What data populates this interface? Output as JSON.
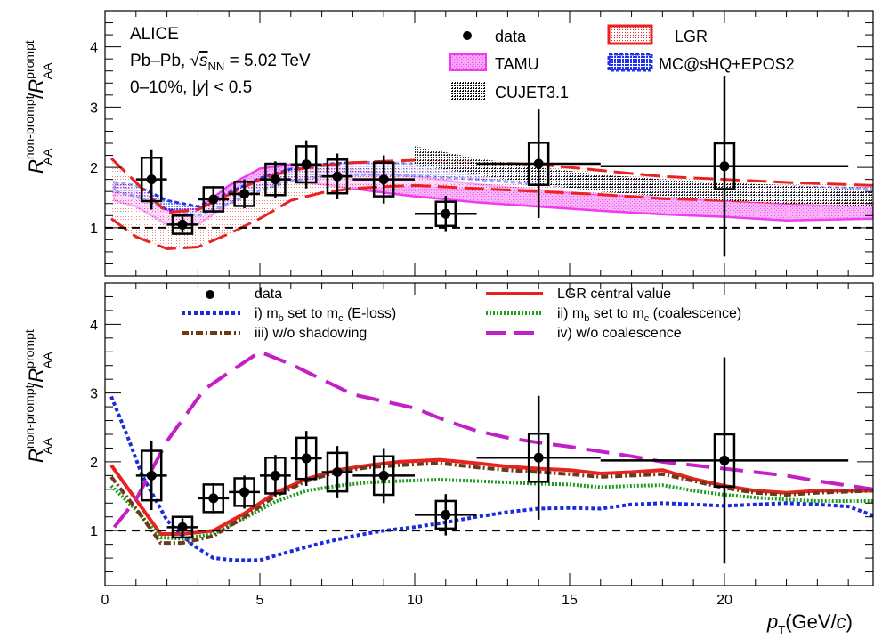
{
  "figure": {
    "experiment": "ALICE",
    "system_prefix": "Pb–Pb, ",
    "sqrt_symbol": "√",
    "s": "s",
    "nn": "NN",
    "energy_value": " = 5.02 TeV",
    "centrality_prefix": "0–10%, |",
    "y": "y",
    "centrality_suffix": "| < 0.5",
    "xlabel_p": "p",
    "xlabel_T": "T",
    "xlabel_rest": "(GeV/",
    "xlabel_c": "c",
    "xlabel_close": ")",
    "ylabel_R": "R",
    "ylabel_sup": "non-prompt",
    "ylabel_sub": "AA",
    "ylabel_slash": "/",
    "ylabel_R2": "R",
    "ylabel_sup2": "prompt",
    "ylabel_sub2": "AA"
  },
  "colors": {
    "data": "#000000",
    "lgr": "#e8231f",
    "tamu": "#f03cf0",
    "mcsHQ": "#2233ee",
    "cujet": "#000000",
    "mb_eloss": "#1a2bdd",
    "mb_coal": "#1c9c1c",
    "no_shadowing": "#6b3a1a",
    "no_coal": "#c21fc6"
  },
  "chart_data": [
    {
      "type": "scatter",
      "panel": "top",
      "xlim": [
        0,
        24.8
      ],
      "ylim": [
        0.2,
        4.6
      ],
      "xticks": [
        0,
        5,
        10,
        15,
        20
      ],
      "yticks": [
        1,
        2,
        3,
        4
      ],
      "reference_line": 1,
      "legend": {
        "data": "data",
        "lgr": "LGR",
        "tamu": "TAMU",
        "mcsHQ": "MC@sHQ+EPOS2",
        "cujet": "CUJET3.1"
      },
      "data_points": [
        {
          "x": 1.5,
          "xerr": 0.5,
          "y": 1.8,
          "stat": 0.5,
          "syst": 0.36
        },
        {
          "x": 2.5,
          "xerr": 0.5,
          "y": 1.05,
          "stat": 0.13,
          "syst": 0.15
        },
        {
          "x": 3.5,
          "xerr": 0.5,
          "y": 1.47,
          "stat": 0.22,
          "syst": 0.2
        },
        {
          "x": 4.5,
          "xerr": 0.5,
          "y": 1.56,
          "stat": 0.24,
          "syst": 0.2
        },
        {
          "x": 5.5,
          "xerr": 0.5,
          "y": 1.8,
          "stat": 0.3,
          "syst": 0.26
        },
        {
          "x": 6.5,
          "xerr": 0.5,
          "y": 2.05,
          "stat": 0.4,
          "syst": 0.3
        },
        {
          "x": 7.5,
          "xerr": 0.5,
          "y": 1.85,
          "stat": 0.38,
          "syst": 0.28
        },
        {
          "x": 9.0,
          "xerr": 1.0,
          "y": 1.8,
          "stat": 0.4,
          "syst": 0.28
        },
        {
          "x": 11.0,
          "xerr": 1.0,
          "y": 1.23,
          "stat": 0.3,
          "syst": 0.2
        },
        {
          "x": 14.0,
          "xerr": 2.0,
          "y": 2.06,
          "stat": 0.9,
          "syst": 0.35
        },
        {
          "x": 20.0,
          "xerr": 4.0,
          "y": 2.02,
          "stat": 1.5,
          "syst": 0.38
        }
      ],
      "lgr_band": {
        "x": [
          0.2,
          1,
          2,
          3,
          4,
          5,
          6,
          7,
          8,
          9,
          10,
          12,
          14,
          16,
          18,
          20,
          22,
          24.8
        ],
        "upper": [
          2.15,
          1.75,
          1.25,
          1.3,
          1.55,
          1.8,
          1.95,
          2.03,
          2.08,
          2.1,
          2.12,
          2.08,
          2.05,
          1.95,
          1.85,
          1.8,
          1.75,
          1.7
        ],
        "lower": [
          1.15,
          0.85,
          0.65,
          0.68,
          0.9,
          1.15,
          1.45,
          1.58,
          1.65,
          1.68,
          1.7,
          1.65,
          1.6,
          1.55,
          1.48,
          1.45,
          1.42,
          1.4
        ]
      },
      "tamu_band": {
        "x": [
          0.3,
          1,
          2,
          3,
          4,
          5,
          6,
          7,
          8,
          9,
          10,
          12,
          14,
          16,
          18,
          20,
          22,
          24.8
        ],
        "upper": [
          1.75,
          1.6,
          1.3,
          1.3,
          1.7,
          1.98,
          2.05,
          2.02,
          1.95,
          1.9,
          1.85,
          1.72,
          1.62,
          1.55,
          1.5,
          1.45,
          1.4,
          1.38
        ],
        "lower": [
          1.45,
          1.35,
          1.05,
          1.05,
          1.4,
          1.7,
          1.78,
          1.72,
          1.65,
          1.58,
          1.52,
          1.42,
          1.35,
          1.28,
          1.22,
          1.18,
          1.12,
          1.15
        ]
      },
      "mcsHQ_band": {
        "x": [
          0.3,
          1,
          2,
          3,
          4,
          5,
          6,
          7,
          8,
          9,
          10,
          12,
          14,
          16,
          18,
          20,
          22,
          24.8
        ],
        "upper": [
          1.75,
          1.7,
          1.45,
          1.35,
          1.58,
          1.82,
          1.97,
          2.05,
          2.08,
          2.08,
          2.06,
          2.0,
          1.92,
          1.85,
          1.78,
          1.72,
          1.68,
          1.65
        ],
        "lower": [
          1.6,
          1.52,
          1.3,
          1.2,
          1.4,
          1.62,
          1.77,
          1.85,
          1.88,
          1.88,
          1.86,
          1.8,
          1.72,
          1.65,
          1.6,
          1.55,
          1.52,
          1.5
        ]
      },
      "cujet_band": {
        "x": [
          10,
          12,
          14,
          16,
          18,
          20,
          22,
          24.8
        ],
        "upper": [
          2.35,
          2.15,
          2.0,
          1.88,
          1.8,
          1.75,
          1.7,
          1.62
        ],
        "lower": [
          2.05,
          1.88,
          1.72,
          1.6,
          1.52,
          1.45,
          1.4,
          1.35
        ]
      }
    },
    {
      "type": "line",
      "panel": "bottom",
      "xlim": [
        0,
        24.8
      ],
      "ylim": [
        0.2,
        4.6
      ],
      "xticks": [
        0,
        5,
        10,
        15,
        20
      ],
      "yticks": [
        1,
        2,
        3,
        4
      ],
      "reference_line": 1,
      "legend": {
        "data": "data",
        "lgr_central": "LGR central value",
        "mb_eloss_pre": "i) m",
        "mb_eloss_sub": "b",
        "mb_eloss_post": " set to m",
        "mb_eloss_sub2": "c",
        "mb_eloss_tail": " (E-loss)",
        "mb_coal_pre": "ii) m",
        "mb_coal_sub": "b",
        "mb_coal_post": " set to m",
        "mb_coal_sub2": "c",
        "mb_coal_tail": " (coalescence)",
        "no_shadowing": "iii) w/o shadowing",
        "no_coal": "iv) w/o coalescence"
      },
      "series": [
        {
          "key": "lgr",
          "name": "LGR central value",
          "x": [
            0.2,
            1,
            1.8,
            2.5,
            3.5,
            4.5,
            5.5,
            6.5,
            7.5,
            8.5,
            9.5,
            10.8,
            12,
            13,
            14,
            15,
            16,
            17,
            18,
            19,
            20,
            21,
            22,
            23,
            24.8
          ],
          "y": [
            1.95,
            1.45,
            0.95,
            0.95,
            1.0,
            1.25,
            1.55,
            1.75,
            1.88,
            1.95,
            2.0,
            2.03,
            1.98,
            1.93,
            1.9,
            1.88,
            1.83,
            1.85,
            1.88,
            1.75,
            1.65,
            1.58,
            1.55,
            1.58,
            1.58
          ]
        },
        {
          "key": "mb_eloss",
          "name": "i) mb set to mc (E-loss)",
          "x": [
            0.2,
            0.7,
            1.2,
            2,
            2.8,
            3.5,
            4.2,
            5,
            6,
            7,
            8,
            9,
            10,
            11,
            12,
            13,
            14,
            15,
            16,
            17,
            18,
            19,
            20,
            21,
            22,
            23,
            24,
            24.8
          ],
          "y": [
            2.95,
            2.4,
            1.8,
            1.15,
            0.8,
            0.6,
            0.57,
            0.57,
            0.7,
            0.82,
            0.92,
            1.0,
            1.05,
            1.12,
            1.2,
            1.27,
            1.32,
            1.33,
            1.32,
            1.38,
            1.4,
            1.38,
            1.36,
            1.38,
            1.4,
            1.38,
            1.35,
            1.22
          ]
        },
        {
          "key": "mb_coal",
          "name": "ii) mb set to mc (coalescence)",
          "x": [
            0.2,
            1,
            1.8,
            2.5,
            3.5,
            4.5,
            5.5,
            6.5,
            7.5,
            8.5,
            9.5,
            10.8,
            12,
            13,
            14,
            15,
            16,
            17,
            18,
            19,
            20,
            21,
            22,
            23,
            24.8
          ],
          "y": [
            1.65,
            1.3,
            0.9,
            0.88,
            0.95,
            1.18,
            1.42,
            1.58,
            1.65,
            1.7,
            1.72,
            1.74,
            1.72,
            1.7,
            1.68,
            1.67,
            1.63,
            1.65,
            1.66,
            1.58,
            1.52,
            1.48,
            1.45,
            1.43,
            1.43
          ]
        },
        {
          "key": "no_shadowing",
          "name": "iii) w/o shadowing",
          "x": [
            0.2,
            1,
            1.8,
            2.5,
            3.5,
            4.5,
            5.5,
            6.5,
            7.5,
            8.5,
            9.5,
            10.8,
            12,
            13,
            14,
            15,
            16,
            17,
            18,
            19,
            20,
            21,
            22,
            23,
            24.8
          ],
          "y": [
            1.78,
            1.32,
            0.82,
            0.82,
            0.92,
            1.2,
            1.5,
            1.72,
            1.85,
            1.92,
            1.95,
            1.98,
            1.92,
            1.88,
            1.85,
            1.82,
            1.78,
            1.8,
            1.82,
            1.72,
            1.62,
            1.55,
            1.52,
            1.55,
            1.58
          ]
        },
        {
          "key": "no_coal",
          "name": "iv) w/o coalescence",
          "x": [
            0.3,
            1,
            2,
            3.2,
            4,
            5,
            6,
            7,
            8,
            9,
            10,
            11,
            12,
            13,
            14,
            15,
            16,
            17,
            18,
            19,
            20,
            21,
            22,
            23,
            24.8
          ],
          "y": [
            1.05,
            1.45,
            2.3,
            3.05,
            3.3,
            3.6,
            3.42,
            3.2,
            2.98,
            2.88,
            2.78,
            2.6,
            2.45,
            2.35,
            2.28,
            2.22,
            2.15,
            2.08,
            2.0,
            1.95,
            1.9,
            1.85,
            1.8,
            1.72,
            1.6
          ]
        }
      ],
      "data_points": [
        {
          "x": 1.5,
          "xerr": 0.5,
          "y": 1.8,
          "stat": 0.5,
          "syst": 0.36
        },
        {
          "x": 2.5,
          "xerr": 0.5,
          "y": 1.05,
          "stat": 0.13,
          "syst": 0.15
        },
        {
          "x": 3.5,
          "xerr": 0.5,
          "y": 1.47,
          "stat": 0.22,
          "syst": 0.2
        },
        {
          "x": 4.5,
          "xerr": 0.5,
          "y": 1.56,
          "stat": 0.24,
          "syst": 0.2
        },
        {
          "x": 5.5,
          "xerr": 0.5,
          "y": 1.8,
          "stat": 0.3,
          "syst": 0.26
        },
        {
          "x": 6.5,
          "xerr": 0.5,
          "y": 2.05,
          "stat": 0.4,
          "syst": 0.3
        },
        {
          "x": 7.5,
          "xerr": 0.5,
          "y": 1.85,
          "stat": 0.38,
          "syst": 0.28
        },
        {
          "x": 9.0,
          "xerr": 1.0,
          "y": 1.8,
          "stat": 0.4,
          "syst": 0.28
        },
        {
          "x": 11.0,
          "xerr": 1.0,
          "y": 1.23,
          "stat": 0.3,
          "syst": 0.2
        },
        {
          "x": 14.0,
          "xerr": 2.0,
          "y": 2.06,
          "stat": 0.9,
          "syst": 0.35
        },
        {
          "x": 20.0,
          "xerr": 4.0,
          "y": 2.02,
          "stat": 1.5,
          "syst": 0.38
        }
      ]
    }
  ]
}
